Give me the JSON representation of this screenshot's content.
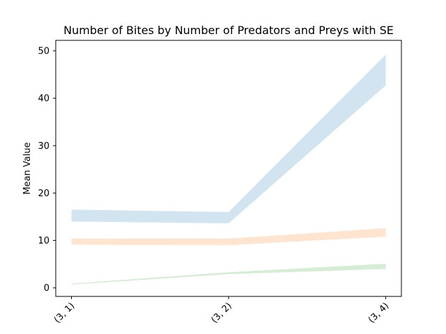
{
  "chart_data": {
    "type": "area",
    "title": "Number of Bites by Number of Predators and Preys with SE",
    "xlabel": "",
    "ylabel": "Mean Value",
    "categories": [
      "(3, 1)",
      "(3, 2)",
      "(3, 4)"
    ],
    "ylim": [
      -1.8,
      52.2
    ],
    "yticks": [
      0,
      10,
      20,
      30,
      40,
      50
    ],
    "grid": false,
    "series": [
      {
        "lower": [
          14.0,
          13.6,
          42.7
        ],
        "upper": [
          16.5,
          16.0,
          49.2
        ],
        "color": "#1f77b4",
        "alpha": 0.2
      },
      {
        "lower": [
          9.1,
          9.0,
          10.8
        ],
        "upper": [
          10.4,
          10.4,
          12.6
        ],
        "color": "#ff7f0e",
        "alpha": 0.2
      },
      {
        "lower": [
          0.7,
          2.9,
          4.0
        ],
        "upper": [
          0.9,
          3.3,
          5.1
        ],
        "color": "#2ca02c",
        "alpha": 0.2
      }
    ]
  }
}
